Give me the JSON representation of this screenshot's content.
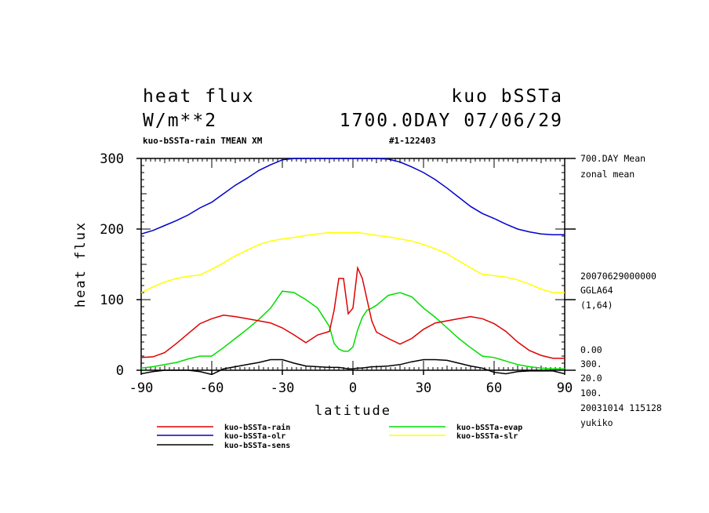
{
  "header": {
    "title_left": "heat flux",
    "title_right": "kuo bSSTa",
    "subtitle_left": "W/m**2",
    "subtitle_right": "1700.0DAY 07/06/29",
    "info_left": "kuo-bSSTa-rain TMEAN XM",
    "info_right": "#1-122403"
  },
  "side_info": {
    "line1": "700.DAY Mean",
    "line2": "zonal mean",
    "line3": "20070629000000",
    "line4": "GGLA64",
    "line5": "(1,64)",
    "line6": "0.00",
    "line7": "300.",
    "line8": "20.0",
    "line9": "100.",
    "line10": "20031014 115128",
    "line11": "yukiko"
  },
  "chart_data": {
    "type": "line",
    "xlabel": "latitude",
    "ylabel": "heat flux",
    "xlim": [
      -90,
      90
    ],
    "ylim": [
      0,
      300
    ],
    "x_ticks": [
      -90,
      -60,
      -30,
      0,
      30,
      60,
      90
    ],
    "y_ticks": [
      0,
      100,
      200,
      300
    ],
    "grid": false,
    "legend_position": "bottom",
    "x": [
      -90,
      -85,
      -80,
      -75,
      -70,
      -65,
      -60,
      -55,
      -50,
      -45,
      -40,
      -35,
      -30,
      -25,
      -20,
      -15,
      -10,
      -8,
      -6,
      -4,
      -2,
      0,
      2,
      4,
      6,
      8,
      10,
      15,
      20,
      25,
      30,
      35,
      40,
      45,
      50,
      55,
      60,
      65,
      70,
      75,
      80,
      85,
      90
    ],
    "series": [
      {
        "name": "kuo-bSSTa-rain",
        "color": "#e00000",
        "values": [
          18,
          19,
          25,
          38,
          52,
          66,
          73,
          78,
          76,
          73,
          70,
          67,
          60,
          50,
          39,
          50,
          55,
          85,
          130,
          130,
          80,
          88,
          145,
          130,
          100,
          70,
          54,
          45,
          37,
          45,
          58,
          67,
          70,
          73,
          76,
          73,
          66,
          55,
          40,
          28,
          21,
          17,
          17
        ]
      },
      {
        "name": "kuo-bSSTa-evap",
        "color": "#00dd00",
        "values": [
          3,
          5,
          8,
          11,
          16,
          20,
          20,
          32,
          45,
          58,
          72,
          88,
          112,
          110,
          100,
          88,
          62,
          38,
          30,
          27,
          27,
          33,
          57,
          75,
          85,
          88,
          92,
          106,
          110,
          104,
          88,
          75,
          60,
          45,
          32,
          20,
          18,
          13,
          8,
          5,
          3,
          2,
          2
        ]
      },
      {
        "name": "kuo-bSSTa-olr",
        "color": "#0000cc",
        "values": [
          193,
          198,
          205,
          212,
          220,
          230,
          238,
          250,
          262,
          272,
          283,
          291,
          298,
          300,
          300,
          300,
          300,
          300,
          300,
          300,
          300,
          300,
          300,
          300,
          300,
          300,
          300,
          299,
          295,
          288,
          280,
          270,
          258,
          245,
          232,
          222,
          215,
          207,
          200,
          196,
          193,
          192,
          192
        ]
      },
      {
        "name": "kuo-bSSTa-slr",
        "color": "#ffff00",
        "values": [
          110,
          118,
          125,
          130,
          133,
          135,
          143,
          152,
          162,
          170,
          178,
          183,
          186,
          188,
          191,
          193,
          195,
          195,
          195,
          195,
          195,
          195,
          195,
          194,
          193,
          192,
          191,
          189,
          186,
          183,
          178,
          172,
          165,
          155,
          145,
          136,
          134,
          132,
          128,
          122,
          115,
          110,
          110
        ]
      },
      {
        "name": "kuo-bSSTa-sens",
        "color": "#000000",
        "values": [
          -5,
          -2,
          0,
          0,
          0,
          -2,
          -6,
          2,
          5,
          8,
          11,
          15,
          15,
          10,
          6,
          5,
          4,
          4,
          4,
          3,
          2,
          2,
          3,
          3,
          4,
          5,
          5,
          6,
          8,
          12,
          15,
          15,
          14,
          10,
          6,
          3,
          -3,
          -5,
          -2,
          -1,
          -1,
          -1,
          -5
        ]
      }
    ]
  }
}
